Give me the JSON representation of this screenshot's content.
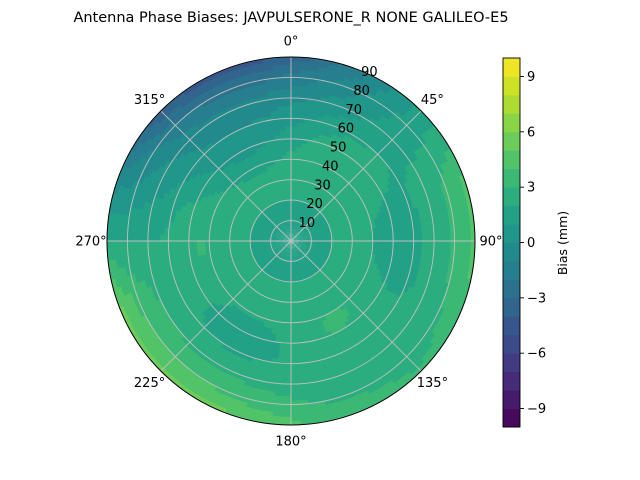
{
  "chart_data": {
    "type": "heatmap",
    "subtype": "polar-contour",
    "title": "Antenna Phase Biases: JAVPULSERONE_R  NONE GALILEO-E5",
    "angular_ticks": [
      "0°",
      "45°",
      "90°",
      "135°",
      "180°",
      "225°",
      "270°",
      "315°"
    ],
    "angular_tick_values": [
      0,
      45,
      90,
      135,
      180,
      225,
      270,
      315
    ],
    "radial_ticks": [
      "10",
      "20",
      "30",
      "40",
      "50",
      "60",
      "70",
      "80",
      "90"
    ],
    "radial_tick_values": [
      10,
      20,
      30,
      40,
      50,
      60,
      70,
      80,
      90
    ],
    "radial_range": [
      0,
      90
    ],
    "angular_direction": "clockwise",
    "angular_zero": "top",
    "grid": true,
    "colorbar": {
      "label": "Bias (mm)",
      "ticks": [
        "−9",
        "−6",
        "−3",
        "0",
        "3",
        "6",
        "9"
      ],
      "tick_values": [
        -9,
        -6,
        -3,
        0,
        3,
        6,
        9
      ],
      "range": [
        -10,
        10
      ],
      "levels": 20,
      "colormap": "viridis",
      "placement": "right"
    },
    "field_description_values": {
      "center_bias": 1.5,
      "mid_ring_bias": 2.5,
      "north_edge_bias": -5.0,
      "southwest_edge_bias": 4.0
    },
    "colors": {
      "grid": "#c0c0c0",
      "frame": "#000000"
    }
  }
}
